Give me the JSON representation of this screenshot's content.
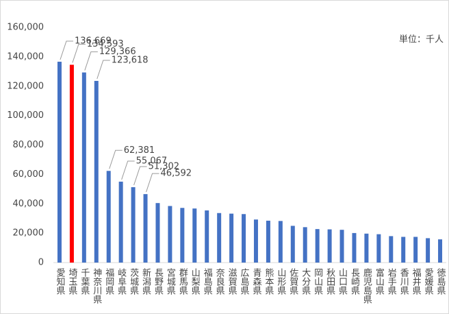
{
  "chart_data": {
    "type": "bar",
    "annotation": "単位：千人",
    "categories": [
      "愛知県",
      "埼玉県",
      "千葉県",
      "神奈川県",
      "福岡県",
      "岐阜県",
      "茨城県",
      "新潟県",
      "長野県",
      "宮城県",
      "群馬県",
      "山梨県",
      "福島県",
      "奈良県",
      "滋賀県",
      "広島県",
      "青森県",
      "熊本県",
      "山形県",
      "佐賀県",
      "大分県",
      "岡山県",
      "秋田県",
      "山口県",
      "長崎県",
      "鹿児島県",
      "富山県",
      "岩手県",
      "香川県",
      "福井県",
      "愛媛県",
      "徳島県"
    ],
    "values": [
      136669,
      134593,
      129366,
      123618,
      62381,
      55067,
      51302,
      46592,
      40500,
      38500,
      37200,
      36800,
      35500,
      33700,
      33300,
      33000,
      29300,
      28500,
      28300,
      25000,
      24100,
      22800,
      22600,
      22300,
      20100,
      19700,
      19300,
      18000,
      17500,
      17500,
      16600,
      15800
    ],
    "value_labels": [
      "136,669",
      "134,593",
      "129,366",
      "123,618",
      "62,381",
      "55,067",
      "51,302",
      "46,592",
      null,
      null,
      null,
      null,
      null,
      null,
      null,
      null,
      null,
      null,
      null,
      null,
      null,
      null,
      null,
      null,
      null,
      null,
      null,
      null,
      null,
      null,
      null,
      null
    ],
    "colors": [
      "#4472c4",
      "#ff0000",
      "#4472c4",
      "#4472c4",
      "#4472c4",
      "#4472c4",
      "#4472c4",
      "#4472c4",
      "#4472c4",
      "#4472c4",
      "#4472c4",
      "#4472c4",
      "#4472c4",
      "#4472c4",
      "#4472c4",
      "#4472c4",
      "#4472c4",
      "#4472c4",
      "#4472c4",
      "#4472c4",
      "#4472c4",
      "#4472c4",
      "#4472c4",
      "#4472c4",
      "#4472c4",
      "#4472c4",
      "#4472c4",
      "#4472c4",
      "#4472c4",
      "#4472c4",
      "#4472c4",
      "#4472c4"
    ],
    "ylim": [
      0,
      160000
    ],
    "yticks": [
      0,
      {
        "value": 20000,
        "label": "20,000"
      },
      {
        "value": 40000,
        "label": "40,000"
      },
      {
        "value": 60000,
        "label": "60,000"
      },
      {
        "value": 80000,
        "label": "80,000"
      },
      {
        "value": 100000,
        "label": "100,000"
      },
      {
        "value": 120000,
        "label": "120,000"
      },
      {
        "value": 140000,
        "label": "140,000"
      },
      {
        "value": 160000,
        "label": "160,000"
      }
    ],
    "grid": false
  }
}
